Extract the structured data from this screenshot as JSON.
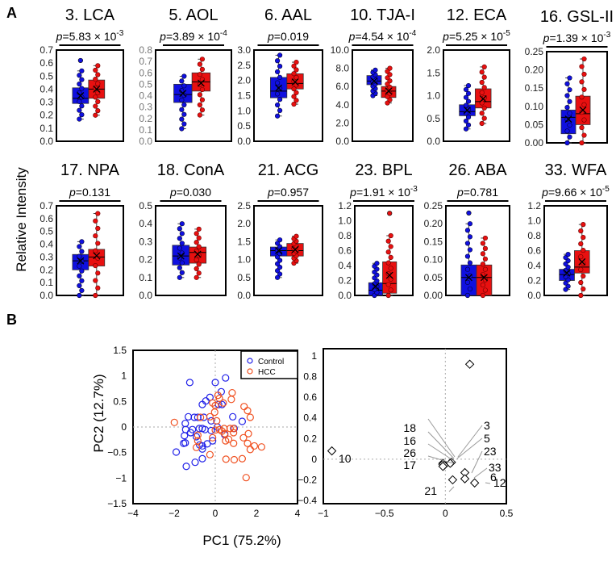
{
  "panel_labels": {
    "a": "A",
    "b": "B"
  },
  "chart_data": [
    {
      "type": "box",
      "panel": "A",
      "ylabel": "Relative Intensity",
      "groups": [
        "Control",
        "HCC"
      ],
      "colors": {
        "Control": "#1010e0",
        "HCC": "#e81010"
      },
      "plots": [
        {
          "title": "3. LCA",
          "p": "p=5.83 × 10-3",
          "p_prefix": "p",
          "p_value": "=5.83 × 10",
          "p_exp": "-3",
          "ylim": [
            0,
            0.7
          ],
          "ticks": [
            "0.0",
            "0.1",
            "0.2",
            "0.3",
            "0.4",
            "0.5",
            "0.6",
            "0.7"
          ],
          "control": {
            "min": 0.17,
            "q1": 0.29,
            "median": 0.33,
            "q3": 0.41,
            "max": 0.54,
            "mean": 0.35,
            "outliers": [
              0.62
            ]
          },
          "hcc": {
            "min": 0.2,
            "q1": 0.33,
            "median": 0.4,
            "q3": 0.47,
            "max": 0.58,
            "mean": 0.4,
            "outliers": []
          }
        },
        {
          "title": "5. AOL",
          "p_prefix": "p",
          "p_value": "=3.89 × 10",
          "p_exp": "-4",
          "ylim": [
            0,
            0.8
          ],
          "ticks": [
            "0.0",
            "0.1",
            "0.2",
            "0.3",
            "0.4",
            "0.5",
            "0.6",
            "0.7",
            "0.8"
          ],
          "control": {
            "min": 0.11,
            "q1": 0.34,
            "median": 0.41,
            "q3": 0.5,
            "max": 0.57,
            "mean": 0.42,
            "outliers": []
          },
          "hcc": {
            "min": 0.23,
            "q1": 0.44,
            "median": 0.52,
            "q3": 0.6,
            "max": 0.72,
            "mean": 0.51,
            "outliers": []
          }
        },
        {
          "title": "6. AAL",
          "p_prefix": "p",
          "p_value": "=0.019",
          "p_exp": "",
          "ylim": [
            0,
            3
          ],
          "ticks": [
            "0.0",
            "0.5",
            "1.0",
            "1.5",
            "2.0",
            "2.5",
            "3.0"
          ],
          "control": {
            "min": 0.83,
            "q1": 1.43,
            "median": 1.65,
            "q3": 2.1,
            "max": 2.83,
            "mean": 1.75,
            "outliers": []
          },
          "hcc": {
            "min": 1.22,
            "q1": 1.72,
            "median": 1.9,
            "q3": 2.22,
            "max": 2.6,
            "mean": 1.95,
            "outliers": []
          }
        },
        {
          "title": "10. TJA-I",
          "p_prefix": "p",
          "p_value": "=4.54 × 10",
          "p_exp": "-4",
          "ylim": [
            0,
            10
          ],
          "ticks": [
            "0.0",
            "2.0",
            "4.0",
            "6.0",
            "8.0",
            "10.0"
          ],
          "control": {
            "min": 5.0,
            "q1": 6.2,
            "median": 6.6,
            "q3": 7.2,
            "max": 7.8,
            "mean": 6.6,
            "outliers": []
          },
          "hcc": {
            "min": 4.2,
            "q1": 4.8,
            "median": 5.5,
            "q3": 6.0,
            "max": 8.0,
            "mean": 5.5,
            "outliers": []
          }
        },
        {
          "title": "12. ECA",
          "p_prefix": "p",
          "p_value": "=5.25 × 10",
          "p_exp": "-5",
          "ylim": [
            0,
            2
          ],
          "ticks": [
            "0.0",
            "0.5",
            "1.0",
            "1.5",
            "2.0"
          ],
          "control": {
            "min": 0.27,
            "q1": 0.56,
            "median": 0.65,
            "q3": 0.8,
            "max": 1.22,
            "mean": 0.68,
            "outliers": []
          },
          "hcc": {
            "min": 0.39,
            "q1": 0.73,
            "median": 0.87,
            "q3": 1.15,
            "max": 1.63,
            "mean": 0.93,
            "outliers": []
          }
        },
        {
          "title": "16. GSL-II",
          "p_prefix": "p",
          "p_value": "=1.39 × 10",
          "p_exp": "-3",
          "ylim": [
            0,
            0.25
          ],
          "ticks": [
            "0.00",
            "0.05",
            "0.10",
            "0.15",
            "0.20",
            "0.25"
          ],
          "control": {
            "min": 0.0,
            "q1": 0.025,
            "median": 0.07,
            "q3": 0.09,
            "max": 0.178,
            "mean": 0.065,
            "outliers": []
          },
          "hcc": {
            "min": 0.0,
            "q1": 0.05,
            "median": 0.08,
            "q3": 0.128,
            "max": 0.23,
            "mean": 0.09,
            "outliers": []
          }
        },
        {
          "title": "17. NPA",
          "p_prefix": "p",
          "p_value": "=0.131",
          "p_exp": "",
          "ylim": [
            0,
            0.7
          ],
          "ticks": [
            "0.0",
            "0.1",
            "0.2",
            "0.3",
            "0.4",
            "0.5",
            "0.6",
            "0.7"
          ],
          "control": {
            "min": 0.0,
            "q1": 0.2,
            "median": 0.27,
            "q3": 0.32,
            "max": 0.42,
            "mean": 0.27,
            "outliers": []
          },
          "hcc": {
            "min": 0.0,
            "q1": 0.23,
            "median": 0.3,
            "q3": 0.36,
            "max": 0.64,
            "mean": 0.31,
            "outliers": []
          }
        },
        {
          "title": "18. ConA",
          "p_prefix": "p",
          "p_value": "=0.030",
          "p_exp": "",
          "ylim": [
            0,
            0.5
          ],
          "ticks": [
            "0.0",
            "0.1",
            "0.2",
            "0.3",
            "0.4",
            "0.5"
          ],
          "control": {
            "min": 0.1,
            "q1": 0.17,
            "median": 0.22,
            "q3": 0.28,
            "max": 0.4,
            "mean": 0.22,
            "outliers": []
          },
          "hcc": {
            "min": 0.1,
            "q1": 0.18,
            "median": 0.24,
            "q3": 0.27,
            "max": 0.37,
            "mean": 0.23,
            "outliers": []
          }
        },
        {
          "title": "21. ACG",
          "p_prefix": "p",
          "p_value": "=0.957",
          "p_exp": "",
          "ylim": [
            0,
            2.5
          ],
          "ticks": [
            "0.0",
            "0.5",
            "1.0",
            "1.5",
            "2.0",
            "2.5"
          ],
          "control": {
            "min": 0.5,
            "q1": 1.1,
            "median": 1.25,
            "q3": 1.35,
            "max": 1.55,
            "mean": 1.25,
            "outliers": []
          },
          "hcc": {
            "min": 0.9,
            "q1": 1.1,
            "median": 1.25,
            "q3": 1.45,
            "max": 1.65,
            "mean": 1.28,
            "outliers": []
          }
        },
        {
          "title": "23. BPL",
          "p_prefix": "p",
          "p_value": "=1.91 × 10",
          "p_exp": "-3",
          "ylim": [
            0,
            1.2
          ],
          "ticks": [
            "0.0",
            "0.2",
            "0.4",
            "0.6",
            "0.8",
            "1.0",
            "1.2"
          ],
          "control": {
            "min": 0.0,
            "q1": 0.0,
            "median": 0.07,
            "q3": 0.17,
            "max": 0.43,
            "mean": 0.12,
            "outliers": []
          },
          "hcc": {
            "min": 0.0,
            "q1": 0.03,
            "median": 0.16,
            "q3": 0.45,
            "max": 0.8,
            "mean": 0.27,
            "outliers": [
              1.1
            ]
          }
        },
        {
          "title": "26. ABA",
          "p_prefix": "p",
          "p_value": "=0.781",
          "p_exp": "",
          "ylim": [
            0,
            0.25
          ],
          "ticks": [
            "0.00",
            "0.05",
            "0.10",
            "0.15",
            "0.20",
            "0.25"
          ],
          "control": {
            "min": 0.0,
            "q1": 0.0,
            "median": 0.05,
            "q3": 0.085,
            "max": 0.2,
            "mean": 0.05,
            "outliers": [
              0.23
            ]
          },
          "hcc": {
            "min": 0.0,
            "q1": 0.0,
            "median": 0.05,
            "q3": 0.085,
            "max": 0.16,
            "mean": 0.05,
            "outliers": []
          }
        },
        {
          "title": "33. WFA",
          "p_prefix": "p",
          "p_value": "=9.66 × 10",
          "p_exp": "-5",
          "ylim": [
            0,
            1.2
          ],
          "ticks": [
            "0.0",
            "0.2",
            "0.4",
            "0.6",
            "0.8",
            "1.0",
            "1.2"
          ],
          "control": {
            "min": 0.08,
            "q1": 0.2,
            "median": 0.28,
            "q3": 0.35,
            "max": 0.55,
            "mean": 0.3,
            "outliers": []
          },
          "hcc": {
            "min": 0.0,
            "q1": 0.3,
            "median": 0.38,
            "q3": 0.6,
            "max": 0.95,
            "mean": 0.45,
            "outliers": []
          }
        }
      ]
    },
    {
      "type": "scatter",
      "panel": "B-scores",
      "xlabel": "PC1 (75.2%)",
      "ylabel": "PC2 (12.7%)",
      "xlim": [
        -4,
        4
      ],
      "ylim": [
        -1.5,
        1.5
      ],
      "xticks": [
        "−4",
        "−2",
        "0",
        "2",
        "4"
      ],
      "yticks": [
        "1.5",
        "1",
        "0.5",
        "0",
        "−0.5",
        "−1",
        "−1.5"
      ],
      "legend": {
        "position": "top-right",
        "items": [
          "Control",
          "HCC"
        ]
      },
      "series": [
        {
          "name": "Control",
          "color": "#2020e8",
          "points": [
            [
              -1.24,
              0.87
            ],
            [
              0,
              0.87
            ],
            [
              0.5,
              0.96
            ],
            [
              0.29,
              0.69
            ],
            [
              -0.26,
              0.58
            ],
            [
              -0.46,
              0.51
            ],
            [
              -0.63,
              0.44
            ],
            [
              0.16,
              0.44
            ],
            [
              0.33,
              0.44
            ],
            [
              -1.31,
              0.2
            ],
            [
              -1.02,
              0.19
            ],
            [
              -0.85,
              0.19
            ],
            [
              -0.56,
              0.19
            ],
            [
              0.85,
              0.2
            ],
            [
              1.31,
              0.11
            ],
            [
              -0.2,
              0.12
            ],
            [
              -1.46,
              0.07
            ],
            [
              -1.44,
              -0.05
            ],
            [
              -1.11,
              -0.05
            ],
            [
              -0.78,
              -0.03
            ],
            [
              -0.63,
              -0.03
            ],
            [
              -0.5,
              -0.05
            ],
            [
              -0.2,
              -0.07
            ],
            [
              0.1,
              0
            ],
            [
              0.92,
              -0.03
            ],
            [
              -1.5,
              -0.17
            ],
            [
              -1.2,
              -0.11
            ],
            [
              -0.92,
              -0.19
            ],
            [
              0.46,
              -0.15
            ],
            [
              -1.46,
              -0.31
            ],
            [
              -1.54,
              -0.32
            ],
            [
              -0.76,
              -0.35
            ],
            [
              -0.63,
              -0.37
            ],
            [
              -0.39,
              -0.33
            ],
            [
              -0.13,
              -0.27
            ],
            [
              -0.63,
              -0.43
            ],
            [
              -1.9,
              -0.49
            ],
            [
              -0.63,
              -0.62
            ],
            [
              -0.98,
              -0.69
            ],
            [
              -1.41,
              -0.77
            ]
          ]
        },
        {
          "name": "HCC",
          "color": "#f05020",
          "points": [
            [
              0.82,
              0.67
            ],
            [
              0.78,
              0.54
            ],
            [
              0.13,
              0.62
            ],
            [
              0.2,
              0.56
            ],
            [
              0.39,
              0.47
            ],
            [
              -0.13,
              0.47
            ],
            [
              0,
              0.42
            ],
            [
              -0.03,
              0.29
            ],
            [
              1.4,
              0.4
            ],
            [
              1.57,
              0.32
            ],
            [
              1.7,
              0.19
            ],
            [
              -1.99,
              0.09
            ],
            [
              -0.26,
              0.2
            ],
            [
              -0.72,
              0.19
            ],
            [
              0.07,
              0.12
            ],
            [
              0.43,
              -0.03
            ],
            [
              0.72,
              -0.03
            ],
            [
              0.89,
              -0.03
            ],
            [
              0,
              -0.06
            ],
            [
              0.2,
              -0.05
            ],
            [
              0.33,
              -0.08
            ],
            [
              0.89,
              -0.11
            ],
            [
              0.46,
              -0.13
            ],
            [
              0.65,
              -0.24
            ],
            [
              0.5,
              -0.27
            ],
            [
              0.89,
              -0.32
            ],
            [
              1.37,
              -0.21
            ],
            [
              1.61,
              -0.13
            ],
            [
              1.57,
              -0.32
            ],
            [
              1.7,
              -0.44
            ],
            [
              1.9,
              -0.37
            ],
            [
              2.25,
              -0.39
            ],
            [
              -0.13,
              -0.21
            ],
            [
              -0.85,
              -0.27
            ],
            [
              -0.92,
              -0.4
            ],
            [
              -0.26,
              -0.54
            ],
            [
              0.52,
              -0.63
            ],
            [
              0.92,
              -0.64
            ],
            [
              1.31,
              -0.62
            ],
            [
              1.5,
              -0.99
            ],
            [
              -0.85,
              -0.16
            ]
          ]
        }
      ]
    },
    {
      "type": "scatter",
      "panel": "B-loadings",
      "xlim": [
        -1,
        0.5
      ],
      "ylim": [
        -0.4,
        1.0
      ],
      "xticks": [
        "−1",
        "−0.5",
        "0",
        "0.5"
      ],
      "yticks": [
        "1",
        "0.8",
        "0.6",
        "0.4",
        "0.2",
        "0",
        "−0.2",
        "−0.4"
      ],
      "points": [
        {
          "label": "6",
          "x": 0.2,
          "y": 0.92
        },
        {
          "label": "10",
          "x": -0.93,
          "y": 0.08
        },
        {
          "label": "3",
          "x": 0.05,
          "y": -0.03
        },
        {
          "label": "5",
          "x": 0.04,
          "y": -0.04
        },
        {
          "label": "18",
          "x": -0.02,
          "y": -0.04
        },
        {
          "label": "16",
          "x": -0.02,
          "y": -0.05
        },
        {
          "label": "26",
          "x": -0.01,
          "y": -0.06
        },
        {
          "label": "17",
          "x": -0.02,
          "y": -0.07
        },
        {
          "label": "23",
          "x": 0.16,
          "y": -0.13
        },
        {
          "label": "33",
          "x": 0.16,
          "y": -0.19
        },
        {
          "label": "12",
          "x": 0.24,
          "y": -0.23
        },
        {
          "label": "21",
          "x": 0.06,
          "y": -0.2
        }
      ]
    }
  ]
}
